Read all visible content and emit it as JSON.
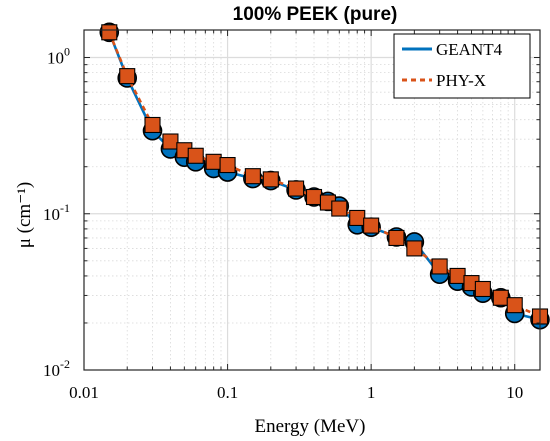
{
  "chart_data": {
    "type": "line",
    "title": "100% PEEK (pure)",
    "xlabel": "Energy (MeV)",
    "ylabel": "μ (cm⁻¹)",
    "xscale": "log",
    "yscale": "log",
    "xlim": [
      0.01,
      15
    ],
    "ylim": [
      0.01,
      1.5
    ],
    "grid": true,
    "legend_position": "top-right",
    "x_ticks": [
      {
        "value": 0.01,
        "label": "0.01"
      },
      {
        "value": 0.1,
        "label": "0.1"
      },
      {
        "value": 1,
        "label": "1"
      },
      {
        "value": 10,
        "label": "10"
      }
    ],
    "y_ticks": [
      {
        "value": 0.01,
        "base": "10",
        "exp": "-2"
      },
      {
        "value": 0.1,
        "base": "10",
        "exp": "-1"
      },
      {
        "value": 1,
        "base": "10",
        "exp": "0"
      }
    ],
    "x": [
      0.015,
      0.02,
      0.03,
      0.04,
      0.05,
      0.06,
      0.08,
      0.1,
      0.15,
      0.2,
      0.3,
      0.4,
      0.5,
      0.6,
      0.8,
      1,
      1.5,
      2,
      3,
      4,
      5,
      6,
      8,
      10,
      15
    ],
    "series": [
      {
        "name": "GEANT4",
        "color": "#0072BD",
        "line_style": "solid",
        "marker": "circle",
        "values": [
          1.45,
          0.74,
          0.34,
          0.26,
          0.23,
          0.215,
          0.195,
          0.185,
          0.168,
          0.163,
          0.142,
          0.128,
          0.12,
          0.112,
          0.085,
          0.082,
          0.071,
          0.066,
          0.041,
          0.037,
          0.034,
          0.031,
          0.029,
          0.023,
          0.021
        ]
      },
      {
        "name": "PHY-X",
        "color": "#D95319",
        "line_style": "dashed",
        "marker": "square",
        "values": [
          1.45,
          0.76,
          0.37,
          0.29,
          0.255,
          0.235,
          0.215,
          0.205,
          0.174,
          0.166,
          0.145,
          0.128,
          0.118,
          0.108,
          0.094,
          0.084,
          0.07,
          0.06,
          0.046,
          0.04,
          0.036,
          0.033,
          0.029,
          0.026,
          0.022
        ]
      }
    ]
  }
}
